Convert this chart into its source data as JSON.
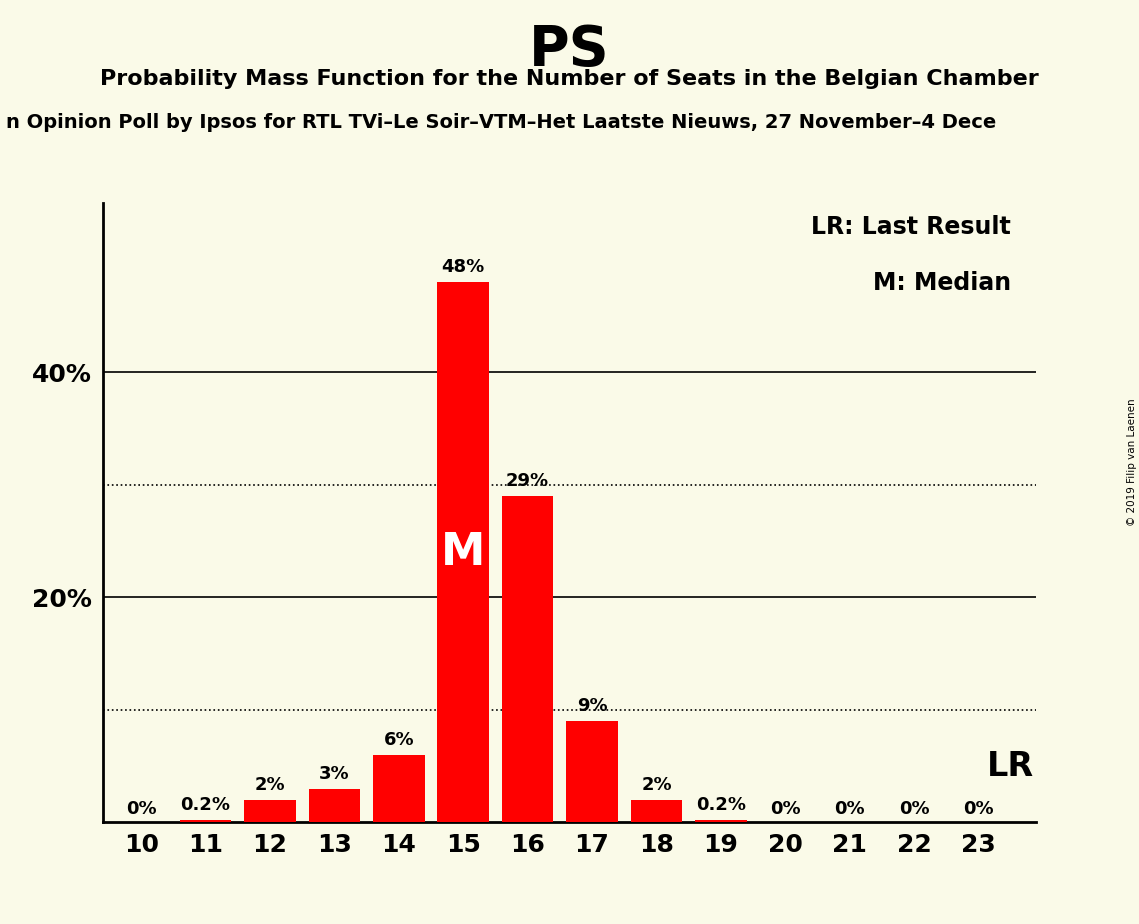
{
  "title": "PS",
  "subtitle": "Probability Mass Function for the Number of Seats in the Belgian Chamber",
  "sub_subtitle": "n Opinion Poll by Ipsos for RTL TVi–Le Soir–VTM–Het Laatste Nieuws, 27 November–4 Dece",
  "copyright": "© 2019 Filip van Laenen",
  "seats": [
    10,
    11,
    12,
    13,
    14,
    15,
    16,
    17,
    18,
    19,
    20,
    21,
    22,
    23
  ],
  "probabilities": [
    0.0,
    0.2,
    2.0,
    3.0,
    6.0,
    48.0,
    29.0,
    9.0,
    2.0,
    0.2,
    0.0,
    0.0,
    0.0,
    0.0
  ],
  "bar_color": "#ff0000",
  "background_color": "#fafae8",
  "median_seat": 15,
  "lr_seat": 23,
  "solid_gridlines": [
    20,
    40
  ],
  "dotted_gridlines": [
    10,
    30
  ],
  "ylim": [
    0,
    55
  ],
  "legend_lr_text": "LR: Last Result",
  "legend_m_text": "M: Median",
  "lr_label": "LR",
  "m_label": "M",
  "bar_width": 0.8
}
